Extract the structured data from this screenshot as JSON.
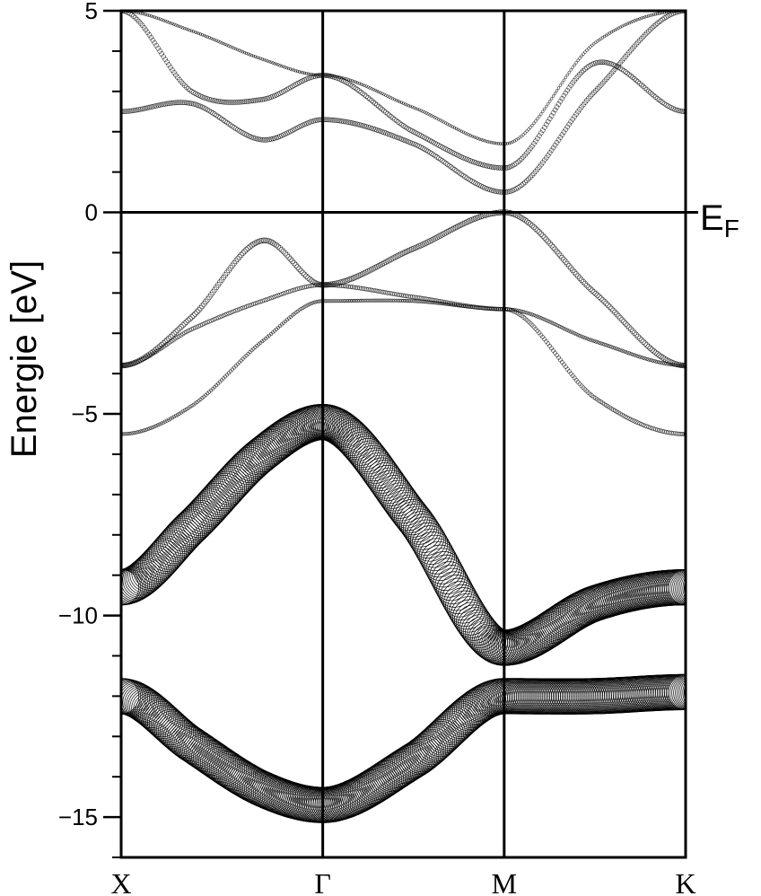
{
  "chart_data": {
    "type": "scatter",
    "title": "",
    "ylabel": "Energie [eV]",
    "xlabel": "",
    "ylim": [
      -16,
      5
    ],
    "yticks": [
      {
        "value": 5,
        "label": "5"
      },
      {
        "value": 0,
        "label": "0"
      },
      {
        "value": -5,
        "label": "−5"
      },
      {
        "value": -10,
        "label": "−10"
      },
      {
        "value": -15,
        "label": "−15"
      }
    ],
    "ytick_minor_step": 1,
    "fermi_level": {
      "value": 0,
      "label": "E",
      "subscript": "F"
    },
    "kpoints": [
      {
        "label": "X",
        "position": 0
      },
      {
        "label": "Γ",
        "position": 1
      },
      {
        "label": "M",
        "position": 1.9
      },
      {
        "label": "K",
        "position": 2.8
      }
    ],
    "x": [
      0,
      0.35,
      0.7,
      1.0,
      1.45,
      1.9,
      2.35,
      2.8
    ],
    "series": [
      {
        "marker_weight": 0.55,
        "values": [
          -12.0,
          -13.2,
          -14.3,
          -14.7,
          -13.6,
          -12.0,
          -12.0,
          -11.9
        ]
      },
      {
        "marker_weight": 0.55,
        "values": [
          -9.3,
          -7.8,
          -6.0,
          -5.2,
          -7.6,
          -10.8,
          -9.7,
          -9.3
        ]
      },
      {
        "marker_weight": 0.05,
        "values": [
          -5.5,
          -4.8,
          -3.2,
          -2.2,
          -2.2,
          -2.4,
          -3.2,
          -3.8
        ]
      },
      {
        "marker_weight": 0.06,
        "values": [
          -3.8,
          -2.9,
          -2.2,
          -1.8,
          -2.1,
          -2.4,
          -4.6,
          -5.5
        ]
      },
      {
        "marker_weight": 0.08,
        "values": [
          -3.8,
          -2.6,
          -0.7,
          -1.8,
          -0.9,
          0.0,
          -2.0,
          -3.8
        ]
      },
      {
        "marker_weight": 0.07,
        "values": [
          2.5,
          2.7,
          1.8,
          2.3,
          1.7,
          0.5,
          3.0,
          5.0
        ]
      },
      {
        "marker_weight": 0.07,
        "values": [
          5.0,
          3.0,
          2.8,
          3.4,
          2.0,
          1.1,
          3.7,
          2.5
        ]
      },
      {
        "marker_weight": 0.04,
        "values": [
          5.0,
          4.5,
          3.8,
          3.4,
          2.6,
          1.7,
          4.2,
          5.0
        ]
      }
    ]
  }
}
